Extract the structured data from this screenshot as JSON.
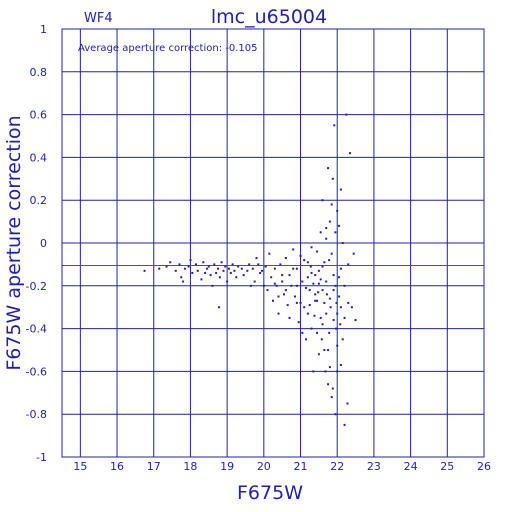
{
  "chart_data": {
    "type": "scatter",
    "title": "lmc_u65004",
    "chip_label": "WF4",
    "annotation": "Average aperture correction: -0.105",
    "xlabel": "F675W",
    "ylabel": "F675W aperture correction",
    "xlim": [
      14.5,
      26
    ],
    "ylim": [
      -1,
      1
    ],
    "x_ticks": [
      "15",
      "16",
      "17",
      "18",
      "19",
      "20",
      "21",
      "22",
      "23",
      "24",
      "25",
      "26"
    ],
    "y_ticks": [
      "1",
      "0.8",
      "0.6",
      "0.4",
      "0.2",
      "0",
      "-0.2",
      "-0.4",
      "-0.6",
      "-0.8",
      "-1"
    ],
    "reference_line": {
      "y": -0.105,
      "color": "#d42020"
    },
    "grid": true,
    "axis_color": "#1f1fb4",
    "point_color": "#1f1fb4",
    "series": [
      {
        "points": [
          [
            16.75,
            -0.13
          ],
          [
            17.15,
            -0.12
          ],
          [
            17.35,
            -0.11
          ],
          [
            17.45,
            -0.09
          ],
          [
            17.6,
            -0.13
          ],
          [
            17.7,
            -0.1
          ],
          [
            17.75,
            -0.16
          ],
          [
            17.85,
            -0.12
          ],
          [
            17.95,
            -0.11
          ],
          [
            18.05,
            -0.14
          ],
          [
            18.15,
            -0.1
          ],
          [
            18.2,
            -0.13
          ],
          [
            18.3,
            -0.17
          ],
          [
            18.35,
            -0.09
          ],
          [
            18.45,
            -0.12
          ],
          [
            18.5,
            -0.11
          ],
          [
            18.55,
            -0.15
          ],
          [
            18.6,
            -0.2
          ],
          [
            18.65,
            -0.1
          ],
          [
            18.7,
            -0.14
          ],
          [
            18.75,
            -0.12
          ],
          [
            18.78,
            -0.3
          ],
          [
            18.8,
            -0.16
          ],
          [
            18.85,
            -0.09
          ],
          [
            18.9,
            -0.13
          ],
          [
            18.95,
            -0.11
          ],
          [
            19.0,
            -0.18
          ],
          [
            19.05,
            -0.12
          ],
          [
            19.1,
            -0.14
          ],
          [
            19.15,
            -0.1
          ],
          [
            19.2,
            -0.13
          ],
          [
            19.25,
            -0.16
          ],
          [
            19.3,
            -0.11
          ],
          [
            19.4,
            -0.12
          ],
          [
            19.45,
            -0.15
          ],
          [
            19.55,
            -0.13
          ],
          [
            19.6,
            -0.1
          ],
          [
            19.7,
            -0.12
          ],
          [
            19.8,
            -0.07
          ],
          [
            19.85,
            -0.1
          ],
          [
            19.95,
            -0.13
          ],
          [
            20.0,
            -0.2
          ],
          [
            20.05,
            -0.11
          ],
          [
            20.1,
            -0.22
          ],
          [
            20.15,
            -0.05
          ],
          [
            20.2,
            -0.16
          ],
          [
            20.25,
            -0.27
          ],
          [
            20.3,
            -0.12
          ],
          [
            20.35,
            -0.2
          ],
          [
            20.4,
            -0.33
          ],
          [
            20.45,
            -0.1
          ],
          [
            20.5,
            -0.18
          ],
          [
            20.55,
            -0.24
          ],
          [
            20.6,
            -0.07
          ],
          [
            20.65,
            -0.29
          ],
          [
            20.7,
            -0.15
          ],
          [
            20.75,
            -0.2
          ],
          [
            20.8,
            -0.03
          ],
          [
            20.85,
            -0.25
          ],
          [
            20.9,
            -0.12
          ],
          [
            20.95,
            -0.37
          ],
          [
            21.0,
            -0.06
          ],
          [
            21.05,
            -0.18
          ],
          [
            21.1,
            -0.3
          ],
          [
            21.15,
            -0.45
          ],
          [
            21.2,
            -0.09
          ],
          [
            21.25,
            -0.22
          ],
          [
            21.3,
            -0.14
          ],
          [
            21.35,
            -0.6
          ],
          [
            21.4,
            -0.27
          ],
          [
            21.45,
            -0.04
          ],
          [
            21.5,
            -0.19
          ],
          [
            21.55,
            -0.35
          ],
          [
            21.6,
            -0.11
          ],
          [
            21.65,
            -0.5
          ],
          [
            21.7,
            0.02
          ],
          [
            21.72,
            -0.24
          ],
          [
            21.75,
            -0.66
          ],
          [
            21.78,
            -0.08
          ],
          [
            21.8,
            0.1
          ],
          [
            21.82,
            -0.3
          ],
          [
            21.85,
            -0.72
          ],
          [
            21.88,
            0.3
          ],
          [
            21.9,
            -0.15
          ],
          [
            21.92,
            0.55
          ],
          [
            21.95,
            -0.8
          ],
          [
            21.97,
            -0.4
          ],
          [
            22.0,
            0.15
          ],
          [
            22.05,
            -0.25
          ],
          [
            22.1,
            -0.57
          ],
          [
            22.15,
            0.0
          ],
          [
            22.2,
            -0.35
          ],
          [
            22.25,
            0.6
          ],
          [
            22.3,
            -0.1
          ],
          [
            22.35,
            0.42
          ],
          [
            22.4,
            -0.3
          ],
          [
            22.45,
            -0.05
          ],
          [
            22.5,
            -0.36
          ],
          [
            22.2,
            -0.85
          ],
          [
            22.28,
            -0.75
          ],
          [
            21.6,
            0.2
          ],
          [
            21.7,
            0.07
          ],
          [
            21.85,
            0.18
          ],
          [
            22.0,
            -0.6
          ],
          [
            22.1,
            0.25
          ],
          [
            21.45,
            -0.42
          ],
          [
            21.55,
            0.05
          ],
          [
            21.65,
            -0.28
          ],
          [
            21.75,
            -0.5
          ],
          [
            21.85,
            -0.05
          ],
          [
            21.95,
            -0.2
          ],
          [
            22.05,
            0.08
          ],
          [
            22.15,
            -0.45
          ],
          [
            21.2,
            -0.33
          ],
          [
            21.3,
            -0.02
          ],
          [
            21.4,
            -0.15
          ],
          [
            21.5,
            -0.52
          ],
          [
            21.6,
            -0.38
          ],
          [
            21.7,
            -0.18
          ],
          [
            21.8,
            -0.58
          ],
          [
            21.9,
            -0.22
          ],
          [
            22.0,
            -0.33
          ],
          [
            22.1,
            -0.12
          ],
          [
            22.2,
            -0.2
          ],
          [
            22.3,
            -0.28
          ],
          [
            20.9,
            -0.2
          ],
          [
            21.0,
            -0.28
          ],
          [
            21.1,
            -0.08
          ],
          [
            21.2,
            -0.16
          ],
          [
            21.3,
            -0.4
          ],
          [
            21.4,
            -0.24
          ],
          [
            21.5,
            -0.13
          ],
          [
            21.6,
            -0.22
          ],
          [
            21.7,
            -0.33
          ],
          [
            21.8,
            -0.26
          ],
          [
            21.9,
            -0.36
          ],
          [
            22.0,
            -0.48
          ],
          [
            22.1,
            -0.3
          ],
          [
            21.75,
            0.35
          ],
          [
            21.88,
            -0.68
          ],
          [
            21.98,
            -0.28
          ],
          [
            22.08,
            -0.38
          ],
          [
            21.55,
            -0.17
          ],
          [
            21.65,
            -0.09
          ],
          [
            21.38,
            -0.34
          ],
          [
            20.7,
            -0.35
          ],
          [
            20.8,
            -0.12
          ],
          [
            20.9,
            -0.28
          ],
          [
            21.05,
            -0.42
          ],
          [
            21.15,
            -0.21
          ],
          [
            21.25,
            -0.29
          ],
          [
            21.35,
            -0.19
          ],
          [
            21.45,
            -0.27
          ],
          [
            21.95,
            0.05
          ],
          [
            22.05,
            -0.16
          ],
          [
            21.78,
            -0.42
          ],
          [
            21.68,
            -0.6
          ],
          [
            21.58,
            -0.45
          ],
          [
            21.48,
            -0.23
          ],
          [
            21.28,
            -0.11
          ],
          [
            20.6,
            -0.22
          ],
          [
            20.5,
            -0.15
          ],
          [
            20.4,
            -0.25
          ],
          [
            20.3,
            -0.19
          ],
          [
            19.9,
            -0.14
          ],
          [
            19.75,
            -0.18
          ],
          [
            19.65,
            -0.2
          ],
          [
            18.4,
            -0.14
          ],
          [
            18.0,
            -0.08
          ],
          [
            17.8,
            -0.18
          ]
        ]
      }
    ]
  }
}
